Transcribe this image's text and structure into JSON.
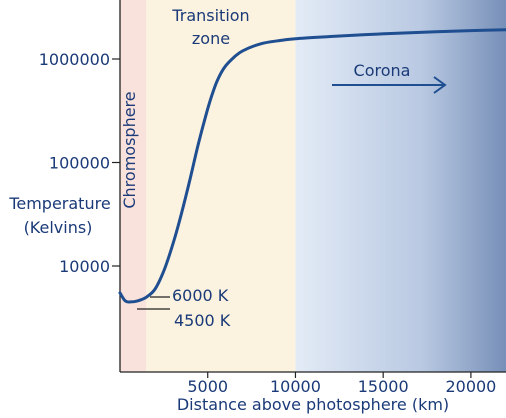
{
  "chart_data": {
    "type": "line",
    "xlabel": "Distance above photosphere (km)",
    "ylabel": [
      "Temperature",
      "(Kelvins)"
    ],
    "y_scale": "log",
    "xlim": [
      0,
      22000
    ],
    "ylim": [
      2000,
      5000000
    ],
    "x_ticks": [
      5000,
      10000,
      15000,
      20000
    ],
    "x_tick_labels": [
      "5000",
      "10000",
      "15000",
      "20000"
    ],
    "y_ticks": [
      10000,
      100000,
      1000000
    ],
    "y_tick_labels": [
      "10000",
      "100000",
      "1000000"
    ],
    "series": [
      {
        "x": [
          0,
          300,
          600,
          1000,
          1500,
          2000,
          2500,
          3000,
          3500,
          4000,
          4500,
          5000,
          5300,
          5600,
          6000,
          6500,
          7000,
          8000,
          9000,
          10000,
          12000,
          14000,
          16000,
          18000,
          20000,
          22000
        ],
        "y": [
          5500,
          4600,
          4500,
          4600,
          5000,
          6000,
          9000,
          16000,
          32000,
          70000,
          160000,
          330000,
          480000,
          650000,
          850000,
          1040000,
          1200000,
          1400000,
          1500000,
          1570000,
          1650000,
          1720000,
          1780000,
          1830000,
          1880000,
          1920000
        ]
      }
    ],
    "regions": [
      {
        "name": "Chromosphere",
        "x_from": 0,
        "x_to": 1500,
        "color": "#f9e2dc"
      },
      {
        "name": "Transition zone",
        "x_from": 1500,
        "x_to": 10000,
        "color": "#fbf2e0"
      },
      {
        "name": "Corona",
        "x_from": 10000,
        "x_to": 22000,
        "color_from": "#e3ebf6",
        "color_to": "#7790b8"
      }
    ],
    "annotations": [
      {
        "text": "6000 K",
        "x": 2000,
        "y": 6000
      },
      {
        "text": "4500 K",
        "x": 600,
        "y": 4500
      }
    ],
    "grid": false,
    "line_color": "#1f4e91",
    "text_color": "#1a3a78"
  }
}
